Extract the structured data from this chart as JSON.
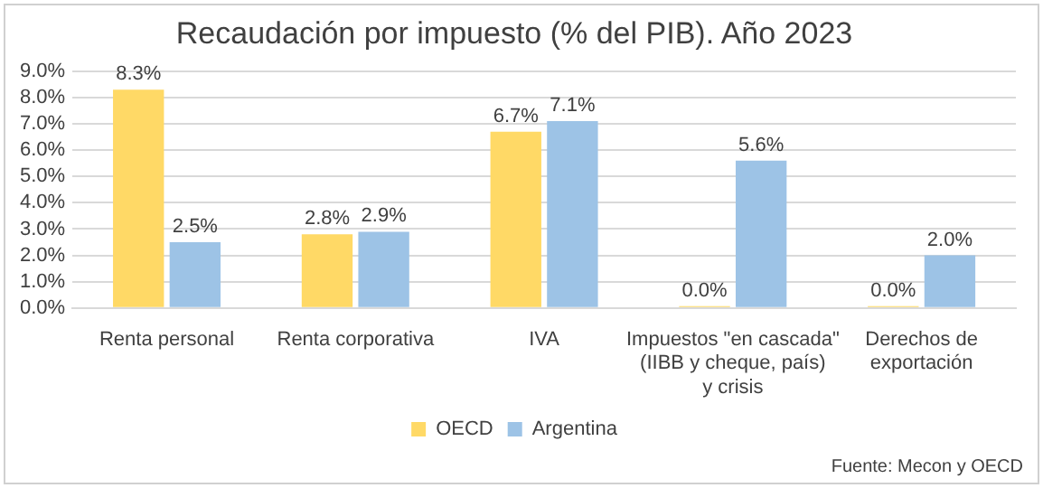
{
  "chart_data": {
    "type": "bar",
    "title": "Recaudación por impuesto (% del PIB). Año 2023",
    "categories": [
      "Renta personal",
      "Renta corporativa",
      "IVA",
      "Impuestos \"en cascada\" (IIBB y cheque, país) y crisis",
      "Derechos de exportación"
    ],
    "series": [
      {
        "name": "OECD",
        "color": "#ffd966",
        "values": [
          8.3,
          2.8,
          6.7,
          0,
          0
        ],
        "value_labels": [
          "8.3%",
          "2.8%",
          "6.7%",
          "0.0%",
          "0.0%"
        ]
      },
      {
        "name": "Argentina",
        "color": "#9dc3e6",
        "values": [
          2.5,
          2.9,
          7.1,
          5.6,
          2.0
        ],
        "value_labels": [
          "2.5%",
          "2.9%",
          "7.1%",
          "5.6%",
          "2.0%"
        ]
      }
    ],
    "ylim": [
      0,
      9
    ],
    "yticks": [
      {
        "value": 0,
        "label": "0.0%"
      },
      {
        "value": 1,
        "label": "1.0%"
      },
      {
        "value": 2,
        "label": "2.0%"
      },
      {
        "value": 3,
        "label": "3.0%"
      },
      {
        "value": 4,
        "label": "4.0%"
      },
      {
        "value": 5,
        "label": "5.0%"
      },
      {
        "value": 6,
        "label": "6.0%"
      },
      {
        "value": 7,
        "label": "7.0%"
      },
      {
        "value": 8,
        "label": "8.0%"
      },
      {
        "value": 9,
        "label": "9.0%"
      }
    ],
    "grid": "y",
    "legend": "bottom",
    "annotations": [
      "Fuente: Mecon y OECD"
    ]
  }
}
